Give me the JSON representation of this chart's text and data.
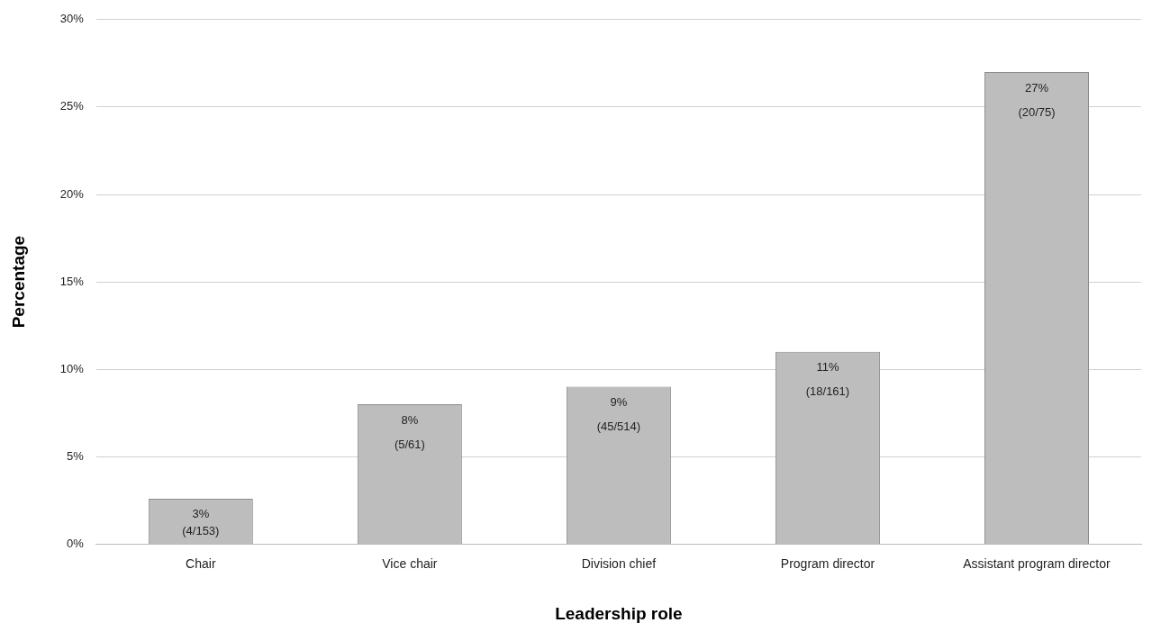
{
  "chart_data": {
    "type": "bar",
    "xlabel": "Leadership role",
    "ylabel": "Percentage",
    "categories": [
      "Chair",
      "Vice chair",
      "Division chief",
      "Program director",
      "Assistant program director"
    ],
    "values": [
      2.6,
      8,
      9,
      11,
      27
    ],
    "value_labels": [
      "3%\n(4/153)",
      "8%\n(5/61)",
      "9%\n(45/514)",
      "11%\n(18/161)",
      "27%\n(20/75)"
    ],
    "color": "#bdbdbd",
    "ylim": [
      0,
      30
    ],
    "yticks": [
      {
        "value": 0,
        "label": "0%"
      },
      {
        "value": 5,
        "label": "5%"
      },
      {
        "value": 10,
        "label": "10%"
      },
      {
        "value": 15,
        "label": "15%"
      },
      {
        "value": 20,
        "label": "20%"
      },
      {
        "value": 25,
        "label": "25%"
      },
      {
        "value": 30,
        "label": "30%"
      }
    ],
    "grid": "y",
    "legend": false
  }
}
